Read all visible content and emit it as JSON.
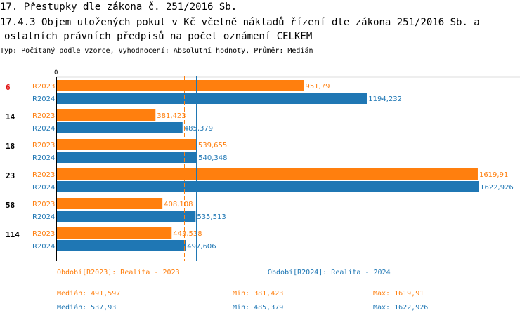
{
  "title": {
    "line1": "17. Přestupky dle zákona č. 251/2016 Sb.",
    "line2": "17.4.3 Objem uložených pokut v Kč včetně nákladů řízení dle zákona 251/2016 Sb. a",
    "line3": "ostatních právních předpisů na počet oznámení CELKEM"
  },
  "subtitle": "Typ: Počítaný podle vzorce, Vyhodnocení: Absolutní hodnoty, Průměr: Medián",
  "colors": {
    "r2023": "#ff7f0e",
    "r2024": "#1f77b4",
    "highlight": "#e01010"
  },
  "chart_data": {
    "type": "bar",
    "orientation": "horizontal",
    "axis_zero_label": "0",
    "xlim": [
      0,
      1640
    ],
    "categories": [
      "6",
      "14",
      "18",
      "23",
      "58",
      "114"
    ],
    "highlighted_category": "6",
    "series": [
      {
        "name": "R2023",
        "label_values": [
          "951,79",
          "381,423",
          "539,655",
          "1619,91",
          "408,108",
          "443,538"
        ],
        "values": [
          951.79,
          381.423,
          539.655,
          1619.91,
          408.108,
          443.538
        ],
        "median": 491.597
      },
      {
        "name": "R2024",
        "label_values": [
          "1194,232",
          "485,379",
          "540,348",
          "1622,926",
          "535,513",
          "497,606"
        ],
        "values": [
          1194.232,
          485.379,
          540.348,
          1622.926,
          535.513,
          497.606
        ],
        "median": 537.93
      }
    ]
  },
  "legend": {
    "r2023_label": "Období[R2023]: Realita - 2023",
    "r2024_label": "Období[R2024]: Realita - 2024",
    "stats_2023": {
      "median": "Medián: 491,597",
      "min": "Min: 381,423",
      "max": "Max: 1619,91"
    },
    "stats_2024": {
      "median": "Medián: 537,93",
      "min": "Min: 485,379",
      "max": "Max: 1622,926"
    }
  }
}
